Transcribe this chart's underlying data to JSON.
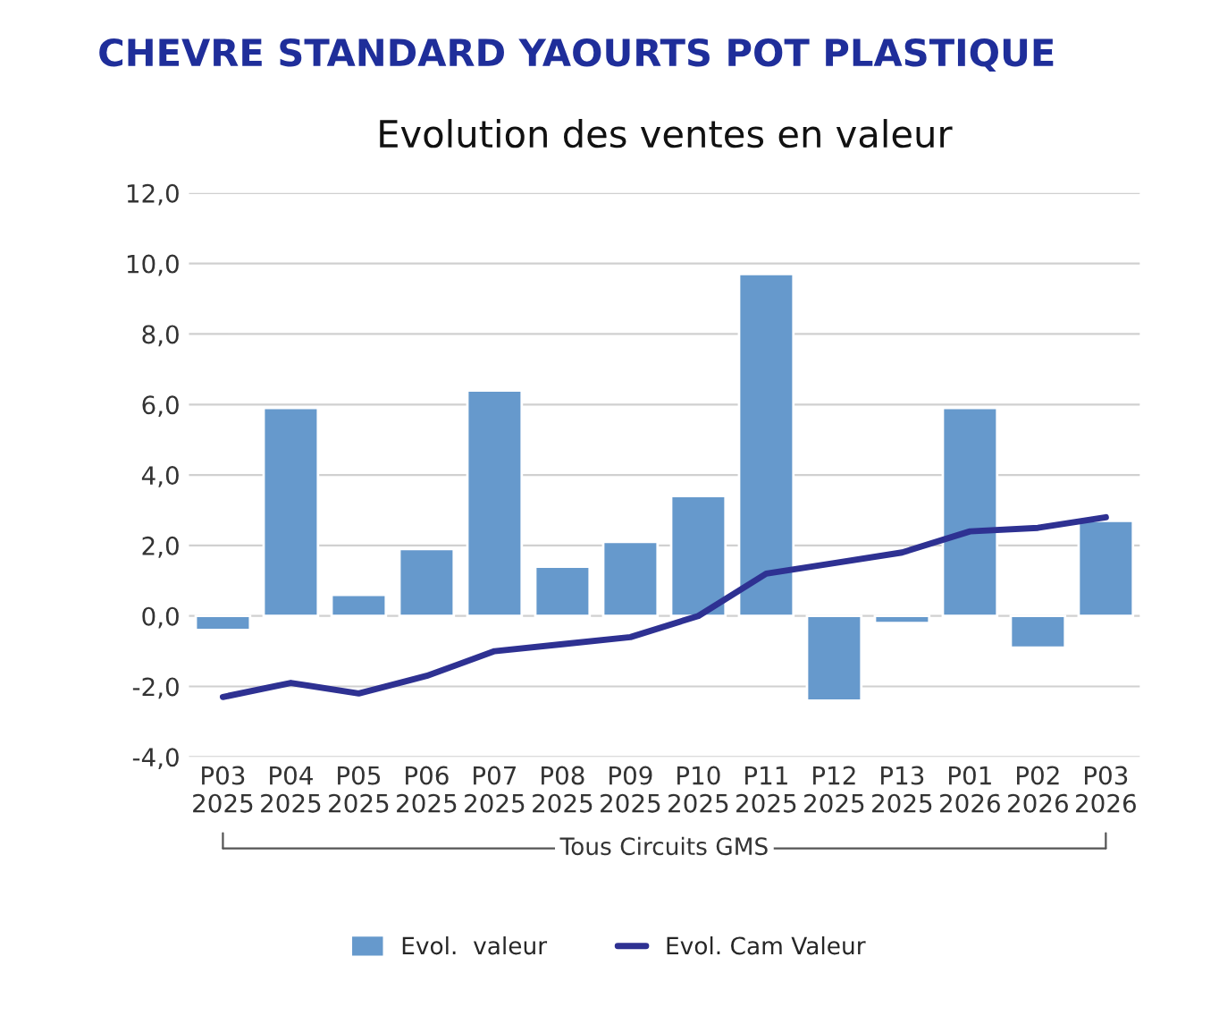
{
  "chart_data": {
    "type": "bar",
    "title": "CHEVRE STANDARD YAOURTS POT PLASTIQUE",
    "subtitle": "Evolution des ventes en valeur",
    "categories": [
      "P03\n2025",
      "P04\n2025",
      "P05\n2025",
      "P06\n2025",
      "P07\n2025",
      "P08\n2025",
      "P09\n2025",
      "P10\n2025",
      "P11\n2025",
      "P12\n2025",
      "P13\n2025",
      "P01\n2026",
      "P02\n2026",
      "P03\n2026"
    ],
    "series": [
      {
        "name": "Evol.  valeur",
        "color": "#6699cc",
        "values": [
          -0.4,
          5.9,
          0.6,
          1.9,
          6.4,
          1.4,
          2.1,
          3.4,
          9.7,
          -2.4,
          -0.2,
          5.9,
          -0.9,
          2.7
        ]
      },
      {
        "name": "Evol. Cam Valeur",
        "type": "line",
        "color": "#2e3192",
        "values": [
          -2.3,
          -1.9,
          -2.2,
          -1.7,
          -1.0,
          -0.8,
          -0.6,
          0.0,
          1.2,
          1.5,
          1.8,
          2.4,
          2.5,
          2.8
        ]
      }
    ],
    "ylim": [
      -4,
      12
    ],
    "yticks": [
      {
        "value": -4,
        "label": "-4,0"
      },
      {
        "value": -2,
        "label": "-2,0"
      },
      {
        "value": 0,
        "label": "0,0"
      },
      {
        "value": 2,
        "label": "2,0"
      },
      {
        "value": 4,
        "label": "4,0"
      },
      {
        "value": 6,
        "label": "6,0"
      },
      {
        "value": 8,
        "label": "8,0"
      },
      {
        "value": 10,
        "label": "10,0"
      },
      {
        "value": 12,
        "label": "12,0"
      }
    ],
    "grid": "y",
    "legend": "bottom",
    "marker": "none",
    "line_style": "solid",
    "annotations": [
      "Tous Circuits GMS"
    ]
  }
}
